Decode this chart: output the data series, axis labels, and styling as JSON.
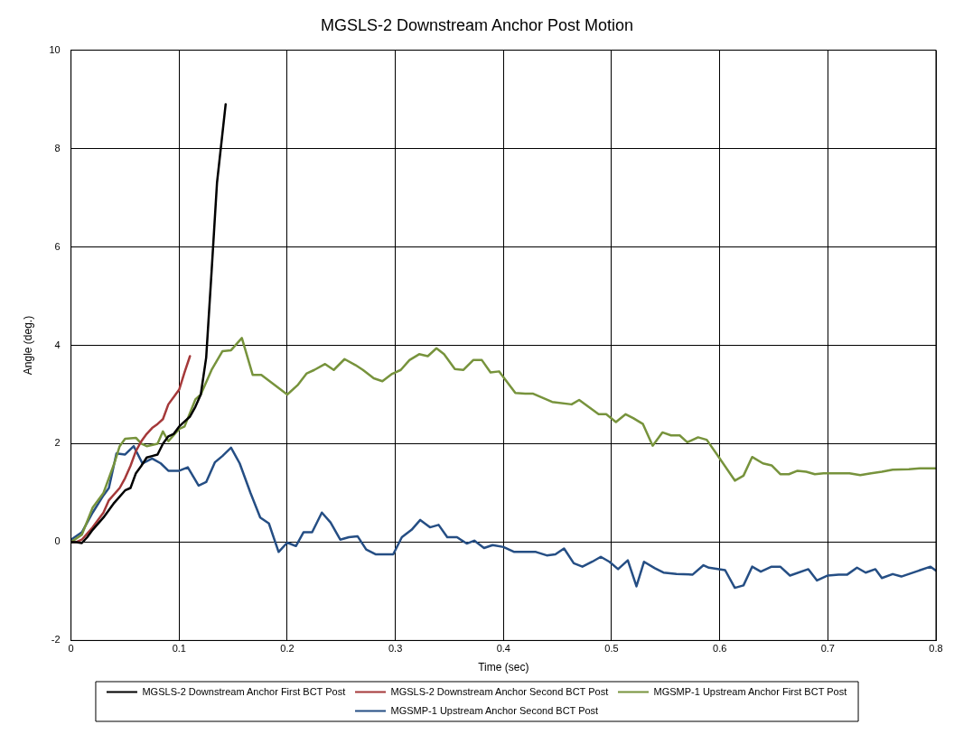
{
  "chart_data": {
    "type": "line",
    "title": "MGSLS-2 Downstream Anchor Post Motion",
    "xlabel": "Time (sec)",
    "ylabel": "Angle (deg.)",
    "xlim": [
      0,
      0.8
    ],
    "xticks": [
      0,
      0.1,
      0.2,
      0.3,
      0.4,
      0.5,
      0.6,
      0.7,
      0.8
    ],
    "ylim": [
      -2,
      10
    ],
    "yticks": [
      -2,
      0,
      2,
      4,
      6,
      8,
      10
    ],
    "grid": true,
    "legend": "bottom",
    "marker": "none",
    "line_style": "solid",
    "series": [
      {
        "name": "MGSLS-2 Downstream Anchor First BCT Post",
        "color": "#000000",
        "x": [
          0,
          0.005,
          0.01,
          0.015,
          0.02,
          0.03,
          0.04,
          0.05,
          0.055,
          0.06,
          0.065,
          0.07,
          0.075,
          0.08,
          0.085,
          0.09,
          0.095,
          0.1,
          0.105,
          0.11,
          0.115,
          0.12,
          0.125,
          0.13,
          0.135,
          0.143
        ],
        "values": [
          0,
          0,
          -0.02,
          0.1,
          0.25,
          0.5,
          0.8,
          1.05,
          1.1,
          1.4,
          1.55,
          1.72,
          1.75,
          1.78,
          2.0,
          2.15,
          2.2,
          2.35,
          2.45,
          2.55,
          2.75,
          3.0,
          3.75,
          5.5,
          7.3,
          8.9
        ]
      },
      {
        "name": "MGSLS-2 Downstream Anchor Second BCT Post",
        "color": "#a5393a",
        "x": [
          0,
          0.005,
          0.01,
          0.02,
          0.03,
          0.035,
          0.045,
          0.05,
          0.055,
          0.06,
          0.065,
          0.07,
          0.075,
          0.08,
          0.085,
          0.09,
          0.095,
          0.1,
          0.105,
          0.11
        ],
        "values": [
          0,
          0,
          0.05,
          0.3,
          0.6,
          0.85,
          1.1,
          1.3,
          1.55,
          1.85,
          2.05,
          2.2,
          2.32,
          2.4,
          2.5,
          2.8,
          2.95,
          3.1,
          3.45,
          3.78
        ]
      },
      {
        "name": "MGSMP-1 Upstream Anchor First BCT Post",
        "color": "#77933c",
        "x": [
          0,
          0.01,
          0.02,
          0.03,
          0.04,
          0.045,
          0.05,
          0.06,
          0.065,
          0.07,
          0.08,
          0.085,
          0.09,
          0.1,
          0.105,
          0.115,
          0.12,
          0.13,
          0.14,
          0.148,
          0.158,
          0.168,
          0.176,
          0.2,
          0.21,
          0.218,
          0.225,
          0.235,
          0.243,
          0.253,
          0.263,
          0.27,
          0.28,
          0.288,
          0.297,
          0.305,
          0.313,
          0.322,
          0.33,
          0.338,
          0.345,
          0.355,
          0.363,
          0.372,
          0.38,
          0.388,
          0.396,
          0.411,
          0.42,
          0.427,
          0.445,
          0.463,
          0.47,
          0.488,
          0.495,
          0.504,
          0.513,
          0.52,
          0.529,
          0.538,
          0.547,
          0.555,
          0.563,
          0.57,
          0.58,
          0.588,
          0.6,
          0.614,
          0.622,
          0.63,
          0.64,
          0.648,
          0.656,
          0.664,
          0.672,
          0.68,
          0.688,
          0.696,
          0.72,
          0.73,
          0.74,
          0.75,
          0.76,
          0.775,
          0.785,
          0.8
        ],
        "values": [
          0,
          0.15,
          0.7,
          1.0,
          1.6,
          1.95,
          2.1,
          2.12,
          2.0,
          1.95,
          2.0,
          2.25,
          2.05,
          2.3,
          2.35,
          2.9,
          3.0,
          3.5,
          3.88,
          3.9,
          4.15,
          3.4,
          3.4,
          3.0,
          3.2,
          3.43,
          3.5,
          3.62,
          3.5,
          3.72,
          3.6,
          3.5,
          3.33,
          3.27,
          3.42,
          3.5,
          3.7,
          3.82,
          3.78,
          3.94,
          3.82,
          3.52,
          3.5,
          3.7,
          3.7,
          3.45,
          3.47,
          3.03,
          3.02,
          3.02,
          2.85,
          2.8,
          2.89,
          2.6,
          2.6,
          2.44,
          2.6,
          2.52,
          2.4,
          1.96,
          2.23,
          2.17,
          2.17,
          2.03,
          2.13,
          2.08,
          1.7,
          1.25,
          1.35,
          1.73,
          1.6,
          1.56,
          1.38,
          1.38,
          1.45,
          1.43,
          1.38,
          1.4,
          1.4,
          1.36,
          1.4,
          1.43,
          1.47,
          1.48,
          1.5,
          1.5
        ]
      },
      {
        "name": "MGSMP-1 Upstream Anchor Second BCT Post",
        "color": "#254e84",
        "x": [
          0,
          0.01,
          0.02,
          0.03,
          0.035,
          0.042,
          0.05,
          0.058,
          0.066,
          0.075,
          0.083,
          0.09,
          0.1,
          0.108,
          0.118,
          0.125,
          0.133,
          0.14,
          0.148,
          0.156,
          0.166,
          0.175,
          0.183,
          0.192,
          0.2,
          0.208,
          0.215,
          0.223,
          0.232,
          0.24,
          0.249,
          0.257,
          0.265,
          0.273,
          0.282,
          0.298,
          0.306,
          0.315,
          0.323,
          0.332,
          0.34,
          0.348,
          0.357,
          0.366,
          0.373,
          0.382,
          0.39,
          0.4,
          0.41,
          0.43,
          0.44,
          0.448,
          0.456,
          0.465,
          0.473,
          0.482,
          0.49,
          0.498,
          0.506,
          0.515,
          0.523,
          0.53,
          0.54,
          0.548,
          0.56,
          0.575,
          0.585,
          0.59,
          0.605,
          0.614,
          0.622,
          0.63,
          0.638,
          0.648,
          0.656,
          0.665,
          0.682,
          0.69,
          0.7,
          0.71,
          0.718,
          0.727,
          0.735,
          0.744,
          0.75,
          0.76,
          0.768,
          0.795,
          0.8
        ],
        "values": [
          0.05,
          0.2,
          0.6,
          0.95,
          1.1,
          1.8,
          1.78,
          1.95,
          1.6,
          1.7,
          1.6,
          1.45,
          1.45,
          1.52,
          1.15,
          1.22,
          1.62,
          1.75,
          1.92,
          1.6,
          1.0,
          0.5,
          0.38,
          -0.2,
          -0.01,
          -0.08,
          0.2,
          0.2,
          0.6,
          0.4,
          0.05,
          0.1,
          0.12,
          -0.15,
          -0.25,
          -0.25,
          0.1,
          0.25,
          0.45,
          0.3,
          0.35,
          0.1,
          0.1,
          -0.03,
          0.03,
          -0.12,
          -0.06,
          -0.1,
          -0.2,
          -0.2,
          -0.27,
          -0.25,
          -0.13,
          -0.43,
          -0.5,
          -0.4,
          -0.3,
          -0.4,
          -0.55,
          -0.37,
          -0.9,
          -0.4,
          -0.53,
          -0.62,
          -0.65,
          -0.66,
          -0.47,
          -0.52,
          -0.57,
          -0.93,
          -0.88,
          -0.5,
          -0.6,
          -0.5,
          -0.5,
          -0.68,
          -0.55,
          -0.78,
          -0.68,
          -0.66,
          -0.66,
          -0.52,
          -0.62,
          -0.55,
          -0.73,
          -0.65,
          -0.7,
          -0.5,
          -0.58
        ]
      }
    ]
  }
}
